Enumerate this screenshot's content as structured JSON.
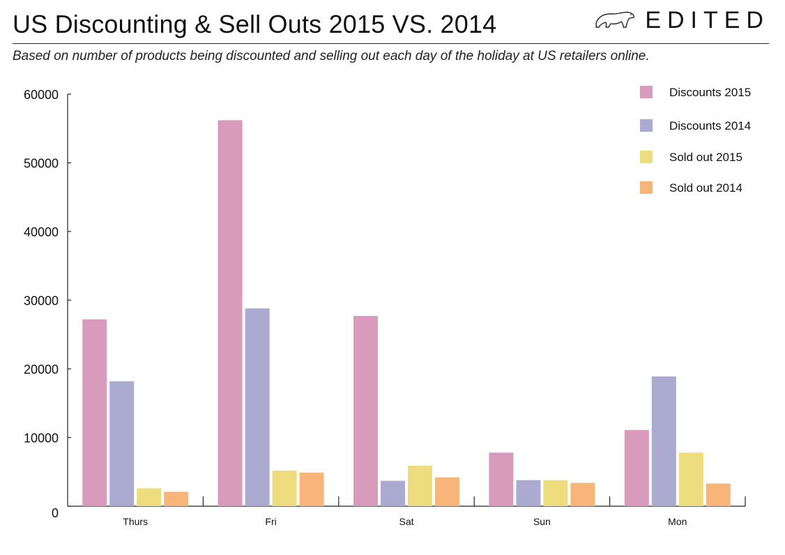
{
  "header": {
    "title": "US Discounting & Sell Outs 2015 VS. 2014",
    "brand": "EDITED",
    "brand_icon": "polar-bear-icon",
    "subtitle": "Based on number of products being discounted and selling out each day of the holiday at US retailers online."
  },
  "chart_data": {
    "type": "bar",
    "title": "US Discounting & Sell Outs 2015 VS. 2014",
    "subtitle": "Based on number of products being discounted and selling out each day of the holiday at US retailers online.",
    "categories": [
      "Thurs",
      "Fri",
      "Sat",
      "Sun",
      "Mon"
    ],
    "series": [
      {
        "name": "Discounts 2015",
        "color": "#d99bbb",
        "values": [
          27200,
          56200,
          27700,
          7800,
          11100
        ]
      },
      {
        "name": "Discounts 2014",
        "color": "#abaad0",
        "values": [
          18200,
          28800,
          3700,
          3800,
          18900
        ]
      },
      {
        "name": "Sold out 2015",
        "color": "#eedd7e",
        "values": [
          2600,
          5200,
          5900,
          3800,
          7800
        ]
      },
      {
        "name": "Sold out 2014",
        "color": "#f7b57a",
        "values": [
          2100,
          4900,
          4200,
          3400,
          3300
        ]
      }
    ],
    "yticks": [
      0,
      10000,
      20000,
      30000,
      40000,
      50000,
      60000
    ],
    "ylim": [
      0,
      60000
    ],
    "xlabel": "",
    "ylabel": "",
    "grid": false,
    "legend": "top-right"
  }
}
